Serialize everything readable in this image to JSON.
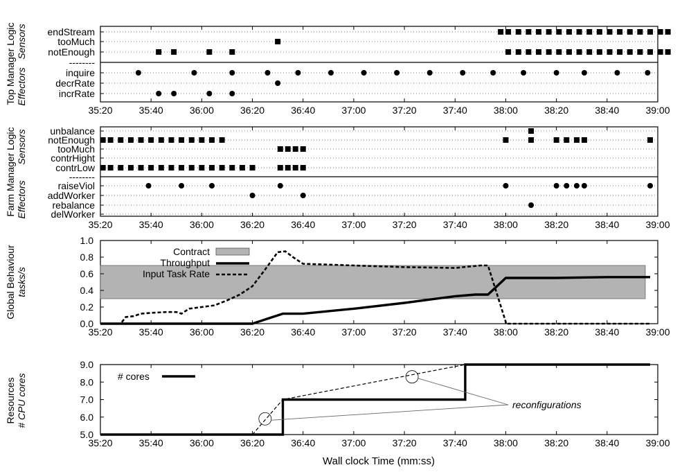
{
  "figure": {
    "xlabel": "Wall clock Time (mm:ss)",
    "x_ticks": [
      "35:20",
      "35:40",
      "36:00",
      "36:20",
      "36:40",
      "37:00",
      "37:20",
      "37:40",
      "38:00",
      "38:20",
      "38:40",
      "39:00"
    ]
  },
  "chart_data": [
    {
      "type": "scatter",
      "ylabel": "Top Manager Logic",
      "ylabel_sub": [
        "Sensors",
        "Effectors"
      ],
      "separator_label": "--------",
      "rows": [
        "endStream",
        "tooMuch",
        "notEnough",
        "inquire",
        "decrRate",
        "incrRate"
      ],
      "events": {
        "endStream": {
          "marker": "square",
          "times": [
            "37:58",
            "38:01",
            "38:05",
            "38:09",
            "38:13",
            "38:17",
            "38:21",
            "38:25",
            "38:29",
            "38:33",
            "38:37",
            "38:41",
            "38:45",
            "38:49",
            "38:53",
            "38:57",
            "39:01",
            "39:04"
          ]
        },
        "tooMuch": {
          "marker": "square",
          "times": [
            "36:30"
          ]
        },
        "notEnough": {
          "marker": "square",
          "times": [
            "35:43",
            "35:49",
            "36:03",
            "36:12",
            "38:01",
            "38:05",
            "38:09",
            "38:13",
            "38:17",
            "38:21",
            "38:25",
            "38:29",
            "38:33",
            "38:37",
            "38:41",
            "38:45",
            "38:49",
            "38:53",
            "38:57",
            "39:01",
            "39:04"
          ]
        },
        "inquire": {
          "marker": "circle",
          "times": [
            "35:35",
            "35:57",
            "36:12",
            "36:26",
            "36:38",
            "36:51",
            "37:04",
            "37:17",
            "37:30",
            "37:43",
            "37:55",
            "38:07",
            "38:20",
            "38:31",
            "38:44",
            "38:56"
          ]
        },
        "decrRate": {
          "marker": "circle",
          "times": [
            "36:30"
          ]
        },
        "incrRate": {
          "marker": "circle",
          "times": [
            "35:43",
            "35:49",
            "36:03",
            "36:12"
          ]
        }
      }
    },
    {
      "type": "scatter",
      "ylabel": "Farm Manager Logic",
      "ylabel_sub": [
        "Sensors",
        "Effectors"
      ],
      "separator_label": "--------",
      "rows": [
        "unbalance",
        "notEnough",
        "tooMuch",
        "contrHight",
        "contrLow",
        "raiseViol",
        "addWorker",
        "rebalance",
        "delWorker"
      ],
      "events": {
        "unbalance": {
          "marker": "square",
          "times": [
            "38:10"
          ]
        },
        "notEnough": {
          "marker": "square",
          "times": [
            "35:21",
            "35:24",
            "35:28",
            "35:32",
            "35:36",
            "35:40",
            "35:44",
            "35:48",
            "35:52",
            "35:56",
            "36:00",
            "36:04",
            "36:08",
            "38:00",
            "38:10",
            "38:20",
            "38:24",
            "38:28",
            "38:31",
            "38:57"
          ]
        },
        "tooMuch": {
          "marker": "square",
          "times": [
            "36:31",
            "36:34",
            "36:37",
            "36:40"
          ]
        },
        "contrHight": {
          "marker": "square",
          "times": []
        },
        "contrLow": {
          "marker": "square",
          "times": [
            "35:21",
            "35:24",
            "35:28",
            "35:32",
            "35:36",
            "35:40",
            "35:44",
            "35:48",
            "35:52",
            "35:56",
            "36:00",
            "36:04",
            "36:08",
            "36:12",
            "36:16",
            "36:20",
            "36:31",
            "36:34",
            "36:37",
            "36:40"
          ]
        },
        "raiseViol": {
          "marker": "circle",
          "times": [
            "35:39",
            "35:52",
            "36:04",
            "36:31",
            "38:00",
            "38:20",
            "38:24",
            "38:28",
            "38:31",
            "38:57"
          ]
        },
        "addWorker": {
          "marker": "circle",
          "times": [
            "36:20",
            "36:40"
          ]
        },
        "rebalance": {
          "marker": "circle",
          "times": [
            "38:10"
          ]
        },
        "delWorker": {
          "marker": "circle",
          "times": []
        }
      }
    },
    {
      "type": "line",
      "ylabel": "Global Behaviour",
      "ylabel_unit": "tasks/s",
      "ylim": [
        0,
        1
      ],
      "y_ticks": [
        "0.0",
        "0.2",
        "0.4",
        "0.6",
        "0.8",
        "1.0"
      ],
      "contract": {
        "name": "Contract",
        "min": 0.3,
        "max": 0.7,
        "color": "#b3b3b3"
      },
      "series": [
        {
          "name": "Throughput",
          "style": "solid",
          "points": [
            [
              "35:20",
              0
            ],
            [
              "36:20",
              0
            ],
            [
              "36:32",
              0.12
            ],
            [
              "36:40",
              0.12
            ],
            [
              "37:00",
              0.18
            ],
            [
              "37:20",
              0.25
            ],
            [
              "37:40",
              0.33
            ],
            [
              "37:48",
              0.35
            ],
            [
              "37:53",
              0.35
            ],
            [
              "38:00",
              0.55
            ],
            [
              "38:20",
              0.55
            ],
            [
              "38:40",
              0.56
            ],
            [
              "38:57",
              0.56
            ]
          ]
        },
        {
          "name": "Input Task Rate",
          "style": "dashed",
          "points": [
            [
              "35:20",
              0
            ],
            [
              "35:28",
              0
            ],
            [
              "35:30",
              0.08
            ],
            [
              "35:33",
              0.09
            ],
            [
              "35:36",
              0.12
            ],
            [
              "35:40",
              0.13
            ],
            [
              "35:46",
              0.14
            ],
            [
              "35:50",
              0.14
            ],
            [
              "35:52",
              0.12
            ],
            [
              "35:55",
              0.18
            ],
            [
              "36:00",
              0.2
            ],
            [
              "36:05",
              0.22
            ],
            [
              "36:10",
              0.28
            ],
            [
              "36:15",
              0.35
            ],
            [
              "36:20",
              0.45
            ],
            [
              "36:25",
              0.65
            ],
            [
              "36:30",
              0.86
            ],
            [
              "36:33",
              0.87
            ],
            [
              "36:36",
              0.8
            ],
            [
              "36:40",
              0.72
            ],
            [
              "37:00",
              0.7
            ],
            [
              "37:20",
              0.68
            ],
            [
              "37:40",
              0.67
            ],
            [
              "37:50",
              0.7
            ],
            [
              "37:53",
              0.7
            ],
            [
              "38:00",
              0.02
            ],
            [
              "38:00",
              0
            ],
            [
              "38:57",
              0
            ]
          ]
        }
      ]
    },
    {
      "type": "line",
      "ylabel": "Resources",
      "ylabel_unit": "# CPU cores",
      "ylim": [
        5,
        9
      ],
      "y_ticks": [
        "5.0",
        "6.0",
        "7.0",
        "8.0",
        "9.0"
      ],
      "series": [
        {
          "name": "# cores",
          "style": "step",
          "points": [
            [
              "35:20",
              5
            ],
            [
              "36:32",
              5
            ],
            [
              "36:32",
              7
            ],
            [
              "37:44",
              7
            ],
            [
              "37:44",
              9
            ],
            [
              "38:57",
              9
            ]
          ]
        }
      ],
      "projection": [
        [
          "36:20",
          5
        ],
        [
          "36:32",
          7
        ],
        [
          "37:44",
          9
        ]
      ],
      "annotation": "reconfigurations",
      "highlighted_points": [
        [
          "36:25",
          5.9
        ],
        [
          "37:23",
          8.3
        ]
      ]
    }
  ]
}
